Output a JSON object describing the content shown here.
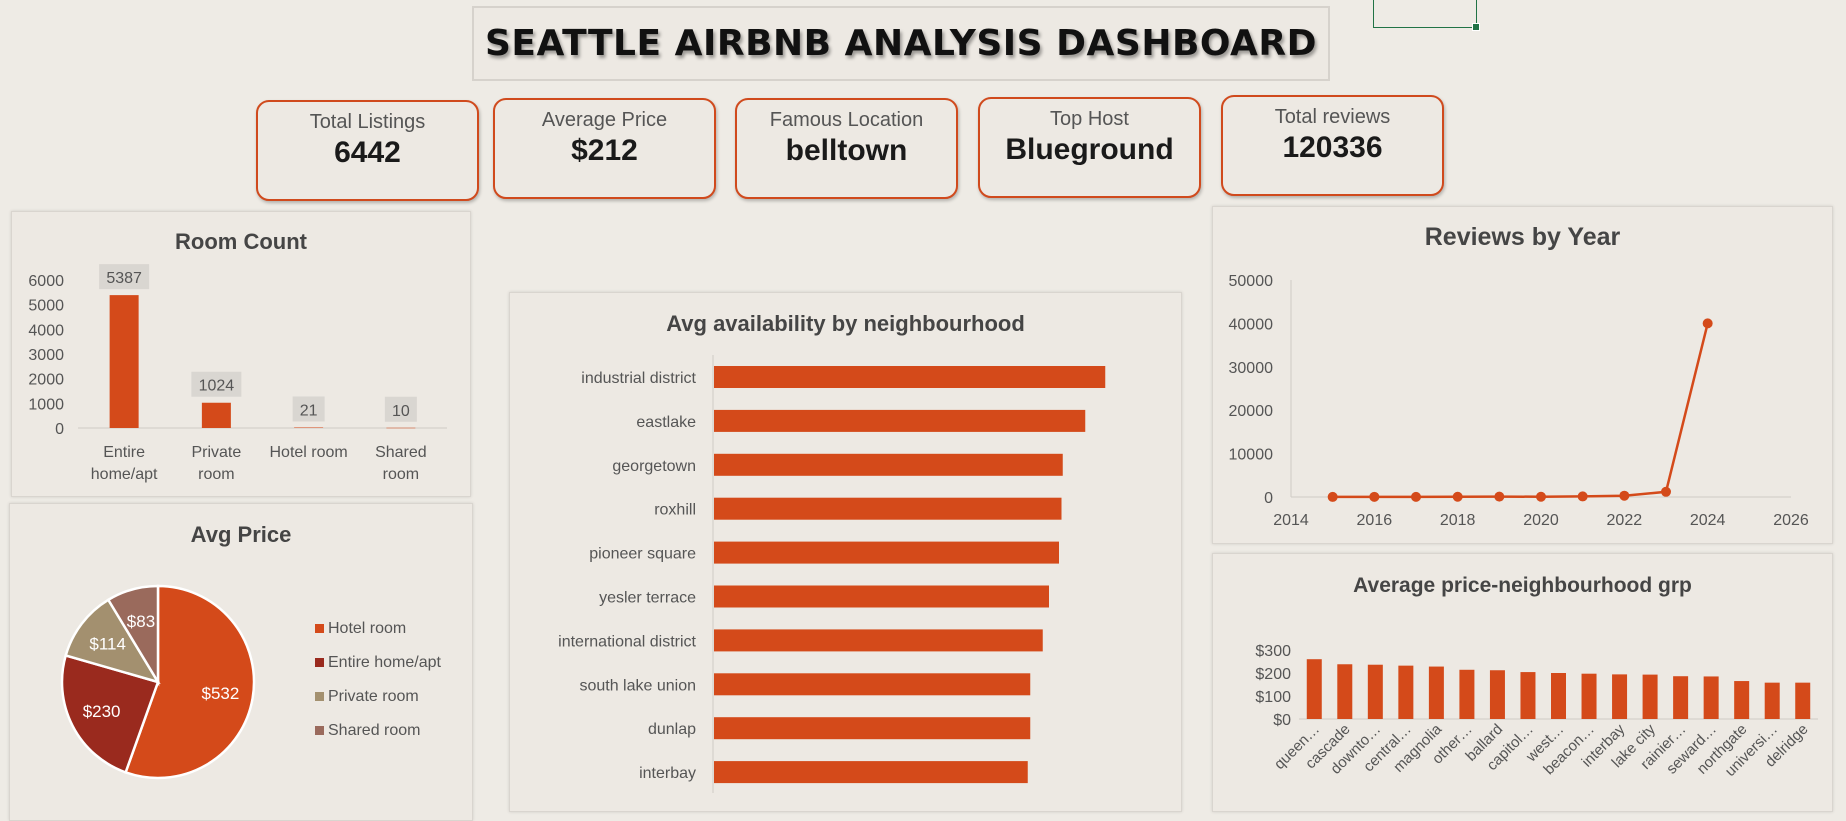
{
  "dashboard": {
    "title": "SEATTLE AIRBNB ANALYSIS DASHBOARD"
  },
  "colors": {
    "accent": "#d44a1a",
    "dark_red": "#9a2a1e",
    "tan": "#a3906f",
    "mauve": "#9a6a5c",
    "kpi_border": "#d04a1d"
  },
  "kpis": [
    {
      "label": "Total Listings",
      "value": "6442"
    },
    {
      "label": "Average Price",
      "value": "$212"
    },
    {
      "label": "Famous Location",
      "value": "belltown"
    },
    {
      "label": "Top Host",
      "value": "Blueground"
    },
    {
      "label": "Total reviews",
      "value": "120336"
    }
  ],
  "chart_data": [
    {
      "id": "room_count",
      "type": "bar",
      "title": "Room Count",
      "categories": [
        [
          "Entire",
          "home/apt"
        ],
        [
          "Private",
          "room"
        ],
        [
          "Hotel room"
        ],
        [
          "Shared",
          "room"
        ]
      ],
      "values": [
        5387,
        1024,
        21,
        10
      ],
      "data_labels": [
        "5387",
        "1024",
        "21",
        "10"
      ],
      "yticks": [
        "0",
        "1000",
        "2000",
        "3000",
        "4000",
        "5000",
        "6000"
      ],
      "ylim": [
        0,
        6000
      ]
    },
    {
      "id": "avg_price",
      "type": "pie",
      "title": "Avg Price",
      "categories": [
        "Hotel room",
        "Entire home/apt",
        "Private room",
        "Shared room"
      ],
      "values": [
        532,
        230,
        114,
        83
      ],
      "data_labels": [
        "$532",
        "$230",
        "$114",
        "$83"
      ],
      "colors": [
        "#d44a1a",
        "#9a2a1e",
        "#a3906f",
        "#9a6a5c"
      ],
      "legend": "right"
    },
    {
      "id": "availability",
      "type": "bar",
      "orientation": "horizontal",
      "title": "Avg availability by neighbourhood",
      "categories": [
        "industrial district",
        "eastlake",
        "georgetown",
        "roxhill",
        "pioneer square",
        "yesler terrace",
        "international district",
        "south lake union",
        "dunlap",
        "interbay"
      ],
      "values": [
        313,
        297,
        279,
        278,
        276,
        268,
        263,
        253,
        253,
        251
      ],
      "xlim": [
        0,
        320
      ]
    },
    {
      "id": "reviews_by_year",
      "type": "scatter",
      "title": "Reviews by Year",
      "x": [
        2015,
        2016,
        2017,
        2018,
        2019,
        2020,
        2021,
        2022,
        2023,
        2024
      ],
      "y": [
        20,
        40,
        30,
        60,
        90,
        60,
        130,
        300,
        1200,
        40000
      ],
      "xticks": [
        "2014",
        "2016",
        "2018",
        "2020",
        "2022",
        "2024",
        "2026"
      ],
      "yticks": [
        "0",
        "10000",
        "20000",
        "30000",
        "40000",
        "50000"
      ],
      "xlim": [
        2014,
        2026
      ],
      "ylim": [
        0,
        50000
      ]
    },
    {
      "id": "avg_price_group",
      "type": "bar",
      "title": "Average price-neighbourhood grp",
      "categories": [
        "queen…",
        "cascade",
        "downto…",
        "central…",
        "magnolia",
        "other…",
        "ballard",
        "capitol…",
        "west…",
        "beacon…",
        "interbay",
        "lake city",
        "rainier…",
        "seward…",
        "northgate",
        "universi…",
        "delridge"
      ],
      "values": [
        260,
        238,
        236,
        232,
        228,
        214,
        212,
        204,
        200,
        197,
        194,
        193,
        186,
        185,
        165,
        158,
        158
      ],
      "yticks": [
        "$0",
        "$100",
        "$200",
        "$300"
      ],
      "ylim": [
        0,
        300
      ]
    }
  ]
}
